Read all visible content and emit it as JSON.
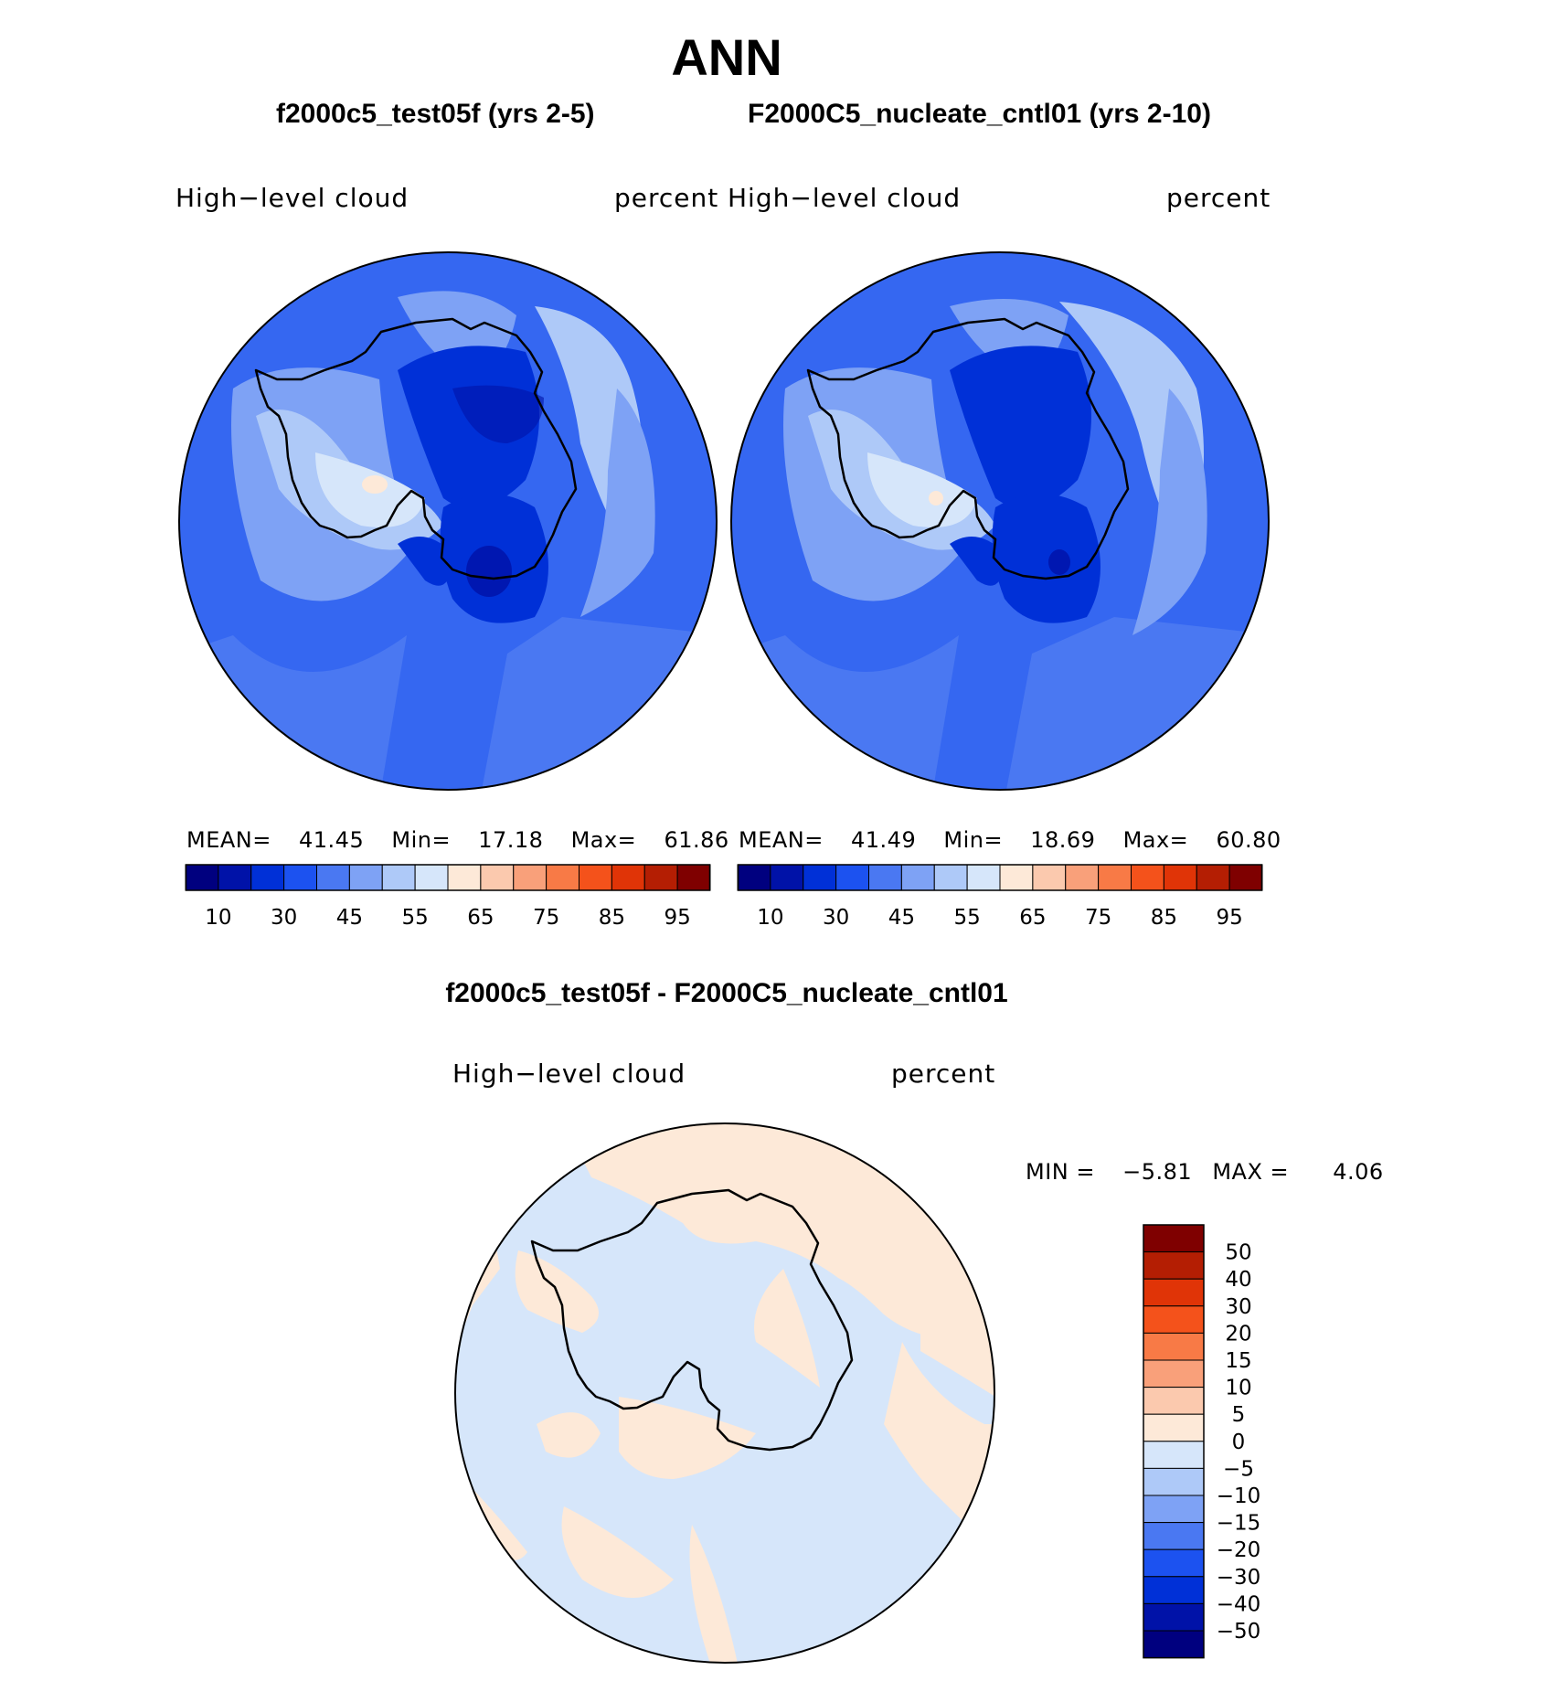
{
  "title": "ANN",
  "panels": [
    {
      "case_title": "f2000c5_test05f (yrs 2-5)",
      "variable": "High−level cloud",
      "units": "percent",
      "stats": {
        "mean_label": "MEAN=",
        "mean": "41.45",
        "min_label": "Min=",
        "min": "17.18",
        "max_label": "Max=",
        "max": "61.86"
      }
    },
    {
      "case_title": "F2000C5_nucleate_cntl01 (yrs 2-10)",
      "variable": "High−level cloud",
      "units": "percent",
      "stats": {
        "mean_label": "MEAN=",
        "mean": "41.49",
        "min_label": "Min=",
        "min": "18.69",
        "max_label": "Max=",
        "max": "60.80"
      }
    }
  ],
  "abs_colorbar": {
    "colors": [
      "#00007f",
      "#0012a8",
      "#0030d7",
      "#1c52f0",
      "#4a78f2",
      "#7ea2f5",
      "#aec9f8",
      "#d6e6fa",
      "#fde9d8",
      "#fbc9ae",
      "#f9a07a",
      "#f87a46",
      "#f4521b",
      "#e03407",
      "#b41e03",
      "#7f0000"
    ],
    "labels": [
      "10",
      "30",
      "45",
      "55",
      "65",
      "75",
      "85",
      "95"
    ]
  },
  "diff_panel": {
    "title": "f2000c5_test05f - F2000C5_nucleate_cntl01",
    "variable": "High−level cloud",
    "units": "percent",
    "min_label": "MIN =",
    "min": "−5.81",
    "max_label": "MAX =",
    "max": "4.06"
  },
  "diff_colorbar": {
    "colors_top_to_bottom": [
      "#7f0000",
      "#b41e03",
      "#e03407",
      "#f4521b",
      "#f87a46",
      "#f9a07a",
      "#fbc9ae",
      "#fde9d8",
      "#d6e6fa",
      "#aec9f8",
      "#7ea2f5",
      "#4a78f2",
      "#1c52f0",
      "#0030d7",
      "#0012a8",
      "#00007f"
    ],
    "labels": [
      "50",
      "40",
      "30",
      "20",
      "15",
      "10",
      "5",
      "0",
      "−5",
      "−10",
      "−15",
      "−20",
      "−30",
      "−40",
      "−50"
    ]
  },
  "map_colors": {
    "ocean_base": "#1c52f0",
    "mid": "#4a78f2",
    "light": "#7ea2f5",
    "lighter": "#aec9f8",
    "palest": "#d6e6fa",
    "peach": "#fde9d8",
    "dark": "#0030d7",
    "darker": "#0012a8",
    "diff_neg": "#d6e6fa",
    "diff_pos": "#fde9d8"
  }
}
